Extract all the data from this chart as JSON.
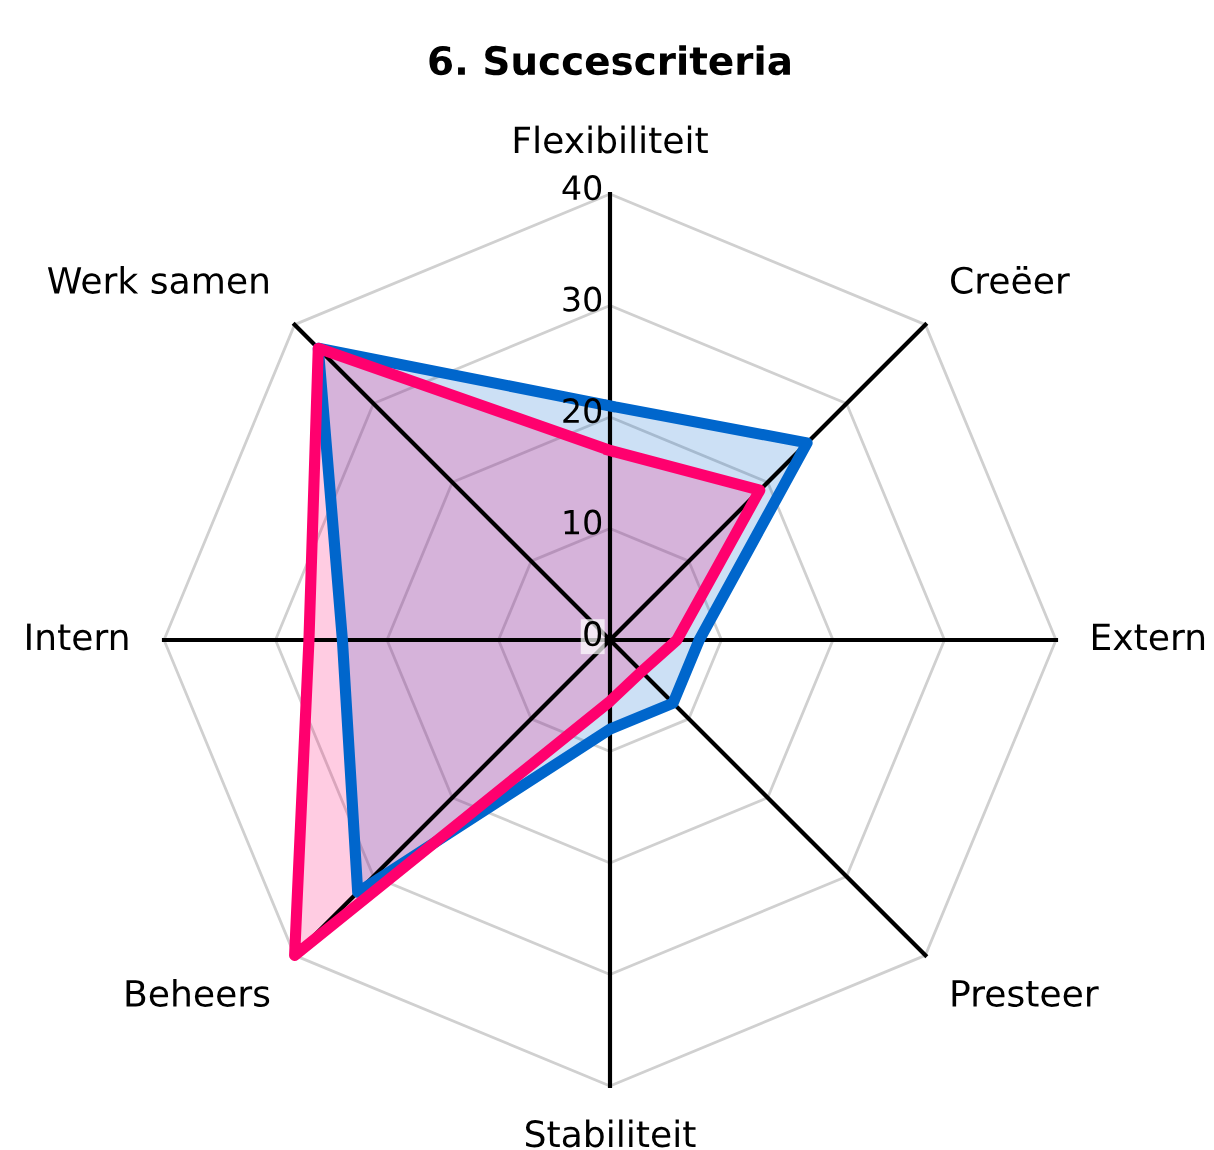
{
  "chart_data": {
    "type": "radar",
    "title": "6. Succescriteria",
    "categories": [
      "Flexibiliteit",
      "Creëer",
      "Extern",
      "Presteer",
      "Stabiliteit",
      "Beheers",
      "Intern",
      "Werk samen"
    ],
    "ylim": [
      0,
      40
    ],
    "yticks": [
      0,
      10,
      20,
      30,
      40
    ],
    "series": [
      {
        "color": "#0066cc",
        "values": [
          21,
          25,
          8,
          8,
          8,
          32,
          24,
          37
        ]
      },
      {
        "color": "#ff006e",
        "values": [
          17,
          19,
          6,
          4,
          5.5,
          40,
          27,
          37
        ]
      }
    ]
  }
}
